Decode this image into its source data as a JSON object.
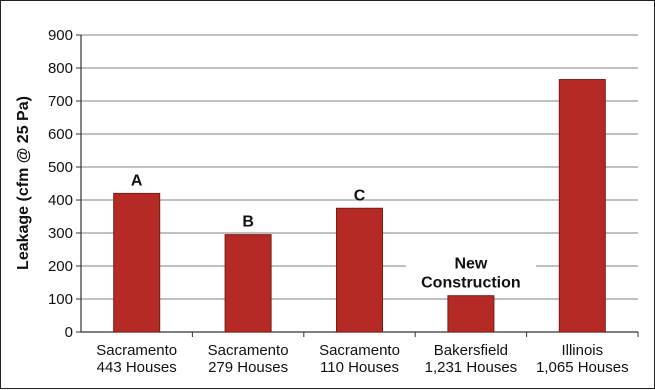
{
  "chart_data": {
    "type": "bar",
    "ylabel": "Leakage (cfm @ 25 Pa)",
    "xlabel": "",
    "title": "",
    "ylim": [
      0,
      900
    ],
    "yticks": [
      0,
      100,
      200,
      300,
      400,
      500,
      600,
      700,
      800,
      900
    ],
    "grid": true,
    "legend": "none",
    "bar_color": "#b52a25",
    "categories": [
      [
        "Sacramento",
        "443 Houses"
      ],
      [
        "Sacramento",
        "279 Houses"
      ],
      [
        "Sacramento",
        "110 Houses"
      ],
      [
        "Bakersfield",
        "1,231 Houses"
      ],
      [
        "Illinois",
        "1,065 Houses"
      ]
    ],
    "values": [
      420,
      295,
      375,
      110,
      765
    ],
    "annotations": [
      {
        "bar": 0,
        "lines": [
          "A"
        ]
      },
      {
        "bar": 1,
        "lines": [
          "B"
        ]
      },
      {
        "bar": 2,
        "lines": [
          "C"
        ]
      },
      {
        "bar": 3,
        "lines": [
          "New",
          "Construction"
        ]
      }
    ]
  }
}
